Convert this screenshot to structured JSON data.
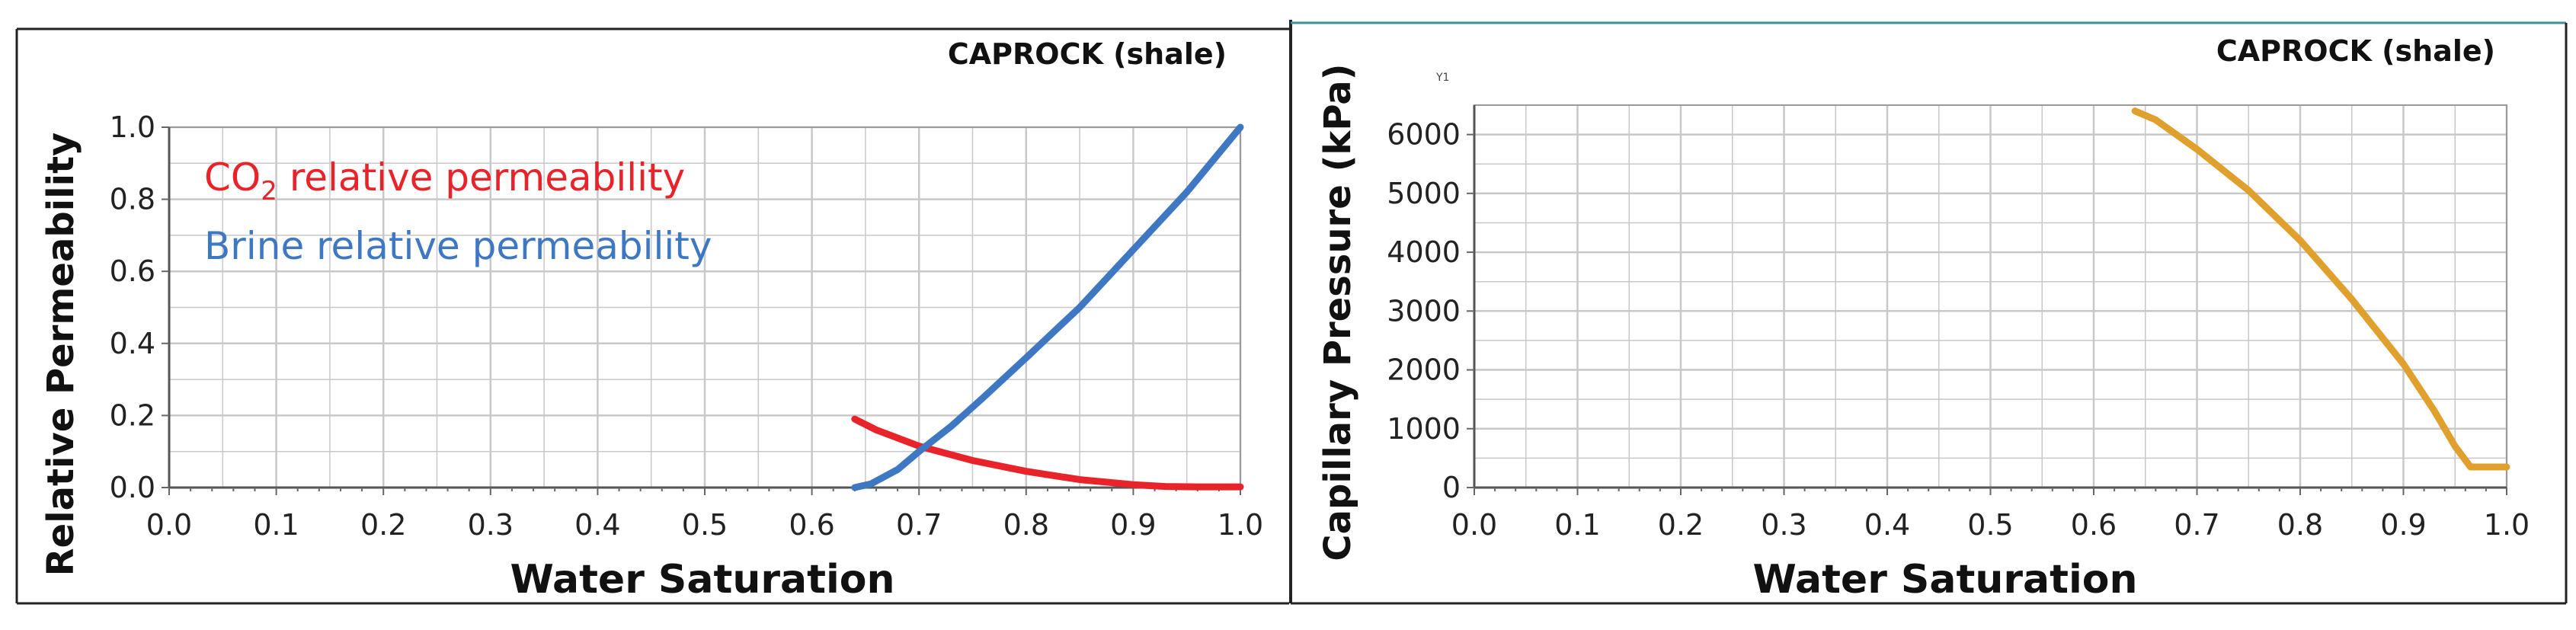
{
  "colors": {
    "co2": "#e8232a",
    "brine": "#3f78c2",
    "capillary": "#e0a02e",
    "frame": "#222222",
    "grid": "#c8c8c8",
    "panel_top_right": "#3f8f96"
  },
  "chart_data": [
    {
      "type": "line",
      "title": "CAPROCK (shale)",
      "xlabel": "Water Saturation",
      "ylabel": "Relative Permeability",
      "xlim": [
        0.0,
        1.0
      ],
      "ylim": [
        0.0,
        1.0
      ],
      "xticks": [
        "0.0",
        "0.1",
        "0.2",
        "0.3",
        "0.4",
        "0.5",
        "0.6",
        "0.7",
        "0.8",
        "0.9",
        "1.0"
      ],
      "yticks": [
        "0.0",
        "0.2",
        "0.4",
        "0.6",
        "0.8",
        "1.0"
      ],
      "grid": true,
      "legend_position": "top-left",
      "legend": {
        "co2_prefix": "CO",
        "co2_sub": "2",
        "co2_suffix": " relative permeability",
        "brine": "Brine relative permeability"
      },
      "series": [
        {
          "name": "CO2 relative permeability",
          "color": "#e8232a",
          "x": [
            0.64,
            0.66,
            0.7,
            0.75,
            0.8,
            0.85,
            0.9,
            0.93,
            0.96,
            1.0
          ],
          "y": [
            0.19,
            0.16,
            0.115,
            0.075,
            0.045,
            0.022,
            0.008,
            0.003,
            0.002,
            0.002
          ]
        },
        {
          "name": "Brine relative permeability",
          "color": "#3f78c2",
          "x": [
            0.64,
            0.655,
            0.68,
            0.7,
            0.73,
            0.76,
            0.8,
            0.85,
            0.9,
            0.95,
            1.0
          ],
          "y": [
            0.0,
            0.01,
            0.05,
            0.1,
            0.17,
            0.25,
            0.36,
            0.5,
            0.66,
            0.82,
            1.0
          ]
        }
      ]
    },
    {
      "type": "line",
      "title": "CAPROCK (shale)",
      "corner_label": "Y1",
      "xlabel": "Water Saturation",
      "ylabel": "Capillary Pressure (kPa)",
      "xlim": [
        0.0,
        1.0
      ],
      "ylim": [
        0,
        6500
      ],
      "xticks": [
        "0.0",
        "0.1",
        "0.2",
        "0.3",
        "0.4",
        "0.5",
        "0.6",
        "0.7",
        "0.8",
        "0.9",
        "1.0"
      ],
      "yticks": [
        "0",
        "1000",
        "2000",
        "3000",
        "4000",
        "5000",
        "6000"
      ],
      "grid": true,
      "series": [
        {
          "name": "Capillary pressure",
          "color": "#e0a02e",
          "x": [
            0.64,
            0.66,
            0.7,
            0.75,
            0.8,
            0.85,
            0.9,
            0.93,
            0.95,
            0.965,
            1.0
          ],
          "y": [
            6400,
            6250,
            5750,
            5050,
            4200,
            3200,
            2100,
            1300,
            700,
            350,
            350
          ]
        }
      ]
    }
  ]
}
